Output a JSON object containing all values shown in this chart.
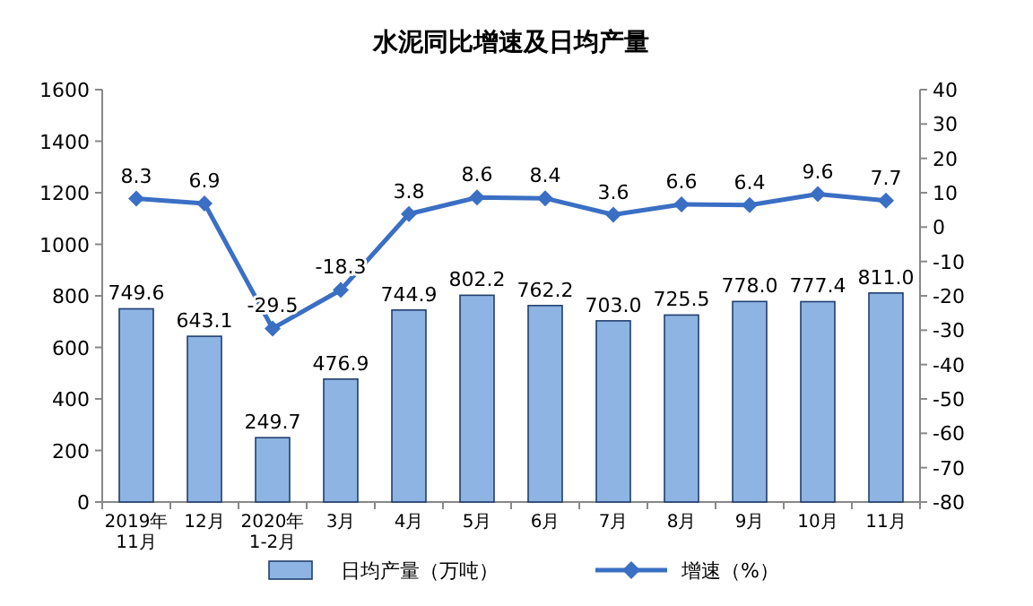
{
  "chart_data": {
    "type": "bar",
    "title": "水泥同比增速及日均产量",
    "categories": [
      "2019年\n11月",
      "12月",
      "2020年\n1-2月",
      "3月",
      "4月",
      "5月",
      "6月",
      "7月",
      "8月",
      "9月",
      "10月",
      "11月"
    ],
    "series": [
      {
        "name": "日均产量（万吨）",
        "color": "#8db4e2",
        "values": [
          749.6,
          643.1,
          249.7,
          476.9,
          744.9,
          802.2,
          762.2,
          703.0,
          725.5,
          778.0,
          777.4,
          811.0
        ],
        "value_labels": [
          "749.6",
          "643.1",
          "249.7",
          "476.9",
          "744.9",
          "802.2",
          "762.2",
          "703.0",
          "725.5",
          "778.0",
          "777.4",
          "811.0"
        ]
      },
      {
        "name": "增速（%）",
        "type": "line",
        "axis": "y2",
        "color": "#3a6fc4",
        "marker": "diamond",
        "values": [
          8.3,
          6.9,
          -29.5,
          -18.3,
          3.8,
          8.6,
          8.4,
          3.6,
          6.6,
          6.4,
          9.6,
          7.7
        ],
        "value_labels": [
          "8.3",
          "6.9",
          "-29.5",
          "-18.3",
          "3.8",
          "8.6",
          "8.4",
          "3.6",
          "6.6",
          "6.4",
          "9.6",
          "7.7"
        ]
      }
    ],
    "ylim": [
      0,
      1600
    ],
    "yticks": [
      0,
      200,
      400,
      600,
      800,
      1000,
      1200,
      1400,
      1600
    ],
    "y2lim": [
      -80,
      40
    ],
    "y2ticks": [
      -80,
      -70,
      -60,
      -50,
      -40,
      -30,
      -20,
      -10,
      0,
      10,
      20,
      30,
      40
    ],
    "legend": "bottom",
    "grid": false
  }
}
